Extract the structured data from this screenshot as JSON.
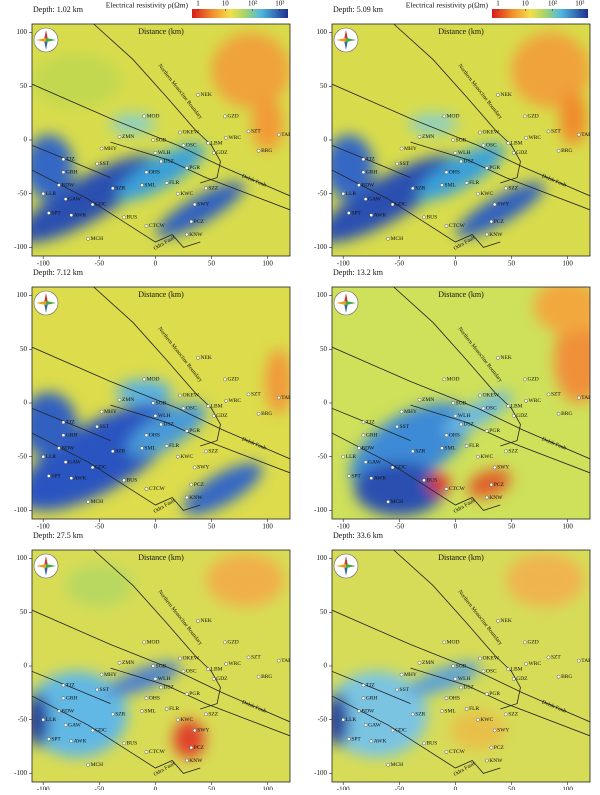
{
  "chart_data": [
    {
      "type": "heatmap",
      "title": "Depth: 1.02 km",
      "xlabel": "Distance (km)",
      "xlim": [
        -110,
        120
      ],
      "ylim": [
        -108,
        108
      ],
      "xticks": [
        -100,
        -50,
        0,
        50,
        100
      ],
      "yticks": [
        -100,
        -50,
        0,
        50,
        100
      ],
      "colorbar": {
        "label": "Electrical resistivity ρ(Ωm)",
        "lim": [
          0.6,
          2000
        ],
        "log_scale": true,
        "ticks": [
          1,
          10,
          {
            "value": 100,
            "label": "10²"
          },
          {
            "value": 1000,
            "label": "10³"
          }
        ]
      }
    },
    {
      "type": "heatmap",
      "title": "Depth: 5.09 km",
      "xlabel": "Distance (km)",
      "xlim": [
        -110,
        120
      ],
      "ylim": [
        -108,
        108
      ],
      "xticks": [
        -100,
        -50,
        0,
        50,
        100
      ],
      "yticks": [
        -100,
        -50,
        0,
        50,
        100
      ],
      "colorbar": {
        "label": "Electrical resistivity ρ(Ωm)",
        "lim": [
          0.6,
          2000
        ],
        "log_scale": true,
        "ticks": [
          1,
          10,
          {
            "value": 100,
            "label": "10²"
          },
          {
            "value": 1000,
            "label": "10³"
          }
        ]
      }
    },
    {
      "type": "heatmap",
      "title": "Depth: 7.12 km",
      "xlabel": "Distance (km)",
      "xlim": [
        -110,
        120
      ],
      "ylim": [
        -108,
        108
      ],
      "xticks": [
        -100,
        -50,
        0,
        50,
        100
      ],
      "yticks": [
        -100,
        -50,
        0,
        50,
        100
      ]
    },
    {
      "type": "heatmap",
      "title": "Depth: 13.2 km",
      "xlabel": "Distance (km)",
      "xlim": [
        -110,
        120
      ],
      "ylim": [
        -108,
        108
      ],
      "xticks": [
        -100,
        -50,
        0,
        50,
        100
      ],
      "yticks": [
        -100,
        -50,
        0,
        50,
        100
      ]
    },
    {
      "type": "heatmap",
      "title": "Depth: 27.5 km",
      "xlabel": "Distance (km)",
      "xlim": [
        -110,
        120
      ],
      "ylim": [
        -108,
        108
      ],
      "xticks": [
        -100,
        -50,
        0,
        50,
        100
      ],
      "yticks": [
        -100,
        -50,
        0,
        50,
        100
      ]
    },
    {
      "type": "heatmap",
      "title": "Depth: 33.6 km",
      "xlabel": "Distance (km)",
      "xlim": [
        -110,
        120
      ],
      "ylim": [
        -108,
        108
      ],
      "xticks": [
        -100,
        -50,
        0,
        50,
        100
      ],
      "yticks": [
        -100,
        -50,
        0,
        50,
        100
      ]
    }
  ],
  "faults": [
    "Northern Monocline Boundary",
    "Dolsk Fault",
    "Odra Fault"
  ],
  "stations": [
    {
      "name": "NEK",
      "x": 38,
      "y": 42
    },
    {
      "name": "GZD",
      "x": 62,
      "y": 22
    },
    {
      "name": "SZT",
      "x": 83,
      "y": 8
    },
    {
      "name": "TAR",
      "x": 110,
      "y": 5
    },
    {
      "name": "WRC",
      "x": 63,
      "y": 2
    },
    {
      "name": "BRG",
      "x": 92,
      "y": -10
    },
    {
      "name": "LBM",
      "x": 47,
      "y": -3
    },
    {
      "name": "GDZ",
      "x": 52,
      "y": -12
    },
    {
      "name": "MOD",
      "x": -10,
      "y": 22
    },
    {
      "name": "ZMN",
      "x": -32,
      "y": 3
    },
    {
      "name": "SGB",
      "x": -2,
      "y": 0
    },
    {
      "name": "OKEW",
      "x": 22,
      "y": 7
    },
    {
      "name": "OSC",
      "x": 25,
      "y": -5
    },
    {
      "name": "MHY",
      "x": -48,
      "y": -8
    },
    {
      "name": "WLH",
      "x": 0,
      "y": -12
    },
    {
      "name": "DSZ",
      "x": 5,
      "y": -20
    },
    {
      "name": "PGR",
      "x": 28,
      "y": -26
    },
    {
      "name": "TJZ",
      "x": -82,
      "y": -18
    },
    {
      "name": "GRH",
      "x": -82,
      "y": -30
    },
    {
      "name": "SST",
      "x": -52,
      "y": -22
    },
    {
      "name": "OHS",
      "x": -8,
      "y": -30
    },
    {
      "name": "SML",
      "x": -12,
      "y": -42
    },
    {
      "name": "FLR",
      "x": 10,
      "y": -40
    },
    {
      "name": "KWC",
      "x": 20,
      "y": -50
    },
    {
      "name": "BDW",
      "x": -86,
      "y": -42
    },
    {
      "name": "SZR",
      "x": -38,
      "y": -45
    },
    {
      "name": "LLR",
      "x": -100,
      "y": -50
    },
    {
      "name": "GAW",
      "x": -80,
      "y": -55
    },
    {
      "name": "GDC",
      "x": -56,
      "y": -60
    },
    {
      "name": "SWY",
      "x": 35,
      "y": -60
    },
    {
      "name": "SPT",
      "x": -95,
      "y": -68
    },
    {
      "name": "AWK",
      "x": -75,
      "y": -70
    },
    {
      "name": "BUS",
      "x": -28,
      "y": -72
    },
    {
      "name": "CTCW",
      "x": -8,
      "y": -80
    },
    {
      "name": "PCZ",
      "x": 32,
      "y": -76
    },
    {
      "name": "KNW",
      "x": 28,
      "y": -88
    },
    {
      "name": "MCH",
      "x": -60,
      "y": -92
    },
    {
      "name": "SZZ",
      "x": 45,
      "y": -45
    }
  ]
}
